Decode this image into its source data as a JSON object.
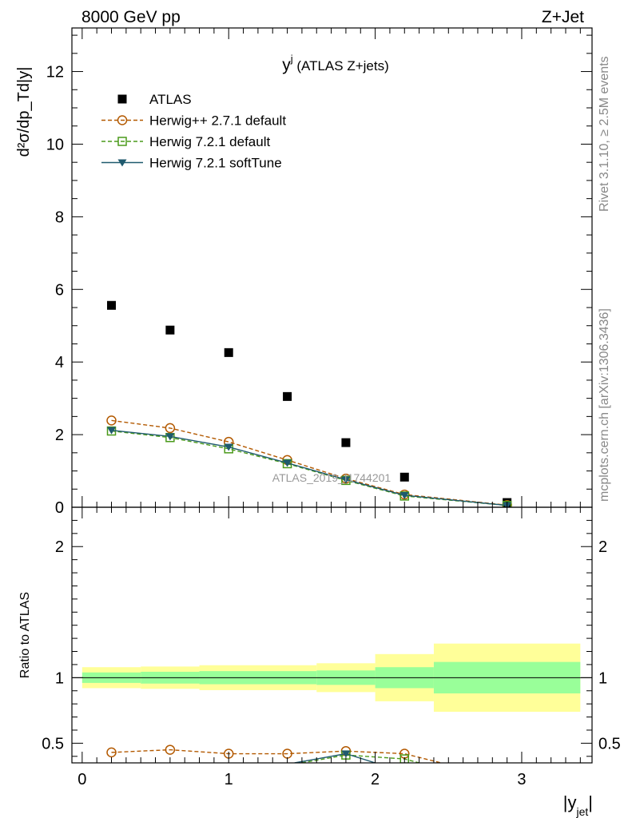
{
  "header": {
    "left": "8000 GeV pp",
    "right": "Z+Jet",
    "side_top": "Rivet 3.1.10, ≥ 2.5M events",
    "side_bottom": "mcplots.cern.ch [arXiv:1306.3436]",
    "watermark": "ATLAS_2019_I1744201"
  },
  "chart_data": [
    {
      "type": "scatter",
      "panel": "main",
      "title": "y",
      "title_superscript": "j",
      "title_suffix": " (ATLAS Z+jets)",
      "ylabel": "d²σ/dp_Td|y|",
      "ylim": [
        0,
        13.2
      ],
      "xlim": [
        -0.07,
        3.48
      ],
      "yticks": [
        0,
        2,
        4,
        6,
        8,
        10,
        12
      ],
      "xticks": [
        0,
        1,
        2,
        3
      ],
      "legend_position": "top-left",
      "series": [
        {
          "name": "ATLAS",
          "marker": "filled-square",
          "color": "#000000",
          "x": [
            0.2,
            0.6,
            1.0,
            1.4,
            1.8,
            2.2,
            2.9
          ],
          "y": [
            5.56,
            4.88,
            4.26,
            3.05,
            1.78,
            0.83,
            0.13
          ]
        },
        {
          "name": "Herwig++ 2.7.1 default",
          "marker": "open-circle",
          "line": "dashed",
          "color": "#b35900",
          "x": [
            0.2,
            0.6,
            1.0,
            1.4,
            1.8,
            2.2,
            2.9
          ],
          "y": [
            2.39,
            2.18,
            1.8,
            1.3,
            0.79,
            0.35,
            0.06
          ]
        },
        {
          "name": "Herwig 7.2.1 default",
          "marker": "open-square",
          "line": "dashed",
          "color": "#4a9a1a",
          "x": [
            0.2,
            0.6,
            1.0,
            1.4,
            1.8,
            2.2,
            2.9
          ],
          "y": [
            2.1,
            1.92,
            1.61,
            1.2,
            0.74,
            0.31,
            0.05
          ]
        },
        {
          "name": "Herwig 7.2.1 softTune",
          "marker": "filled-triangle-down",
          "line": "solid",
          "color": "#1f5a6e",
          "x": [
            0.2,
            0.6,
            1.0,
            1.4,
            1.8,
            2.2,
            2.9
          ],
          "y": [
            2.12,
            1.95,
            1.66,
            1.22,
            0.76,
            0.33,
            0.05
          ]
        }
      ]
    },
    {
      "type": "line",
      "panel": "ratio",
      "ylabel": "Ratio to ATLAS",
      "xlabel": "|y",
      "xlabel_subscript": "jet",
      "xlabel_suffix": "|",
      "ylim": [
        0.35,
        2.3
      ],
      "xlim": [
        -0.07,
        3.48
      ],
      "yticks": [
        0.5,
        1,
        2
      ],
      "xticks": [
        0,
        1,
        2,
        3
      ],
      "bands": [
        {
          "x0": 0.0,
          "x1": 0.4,
          "inner": [
            0.96,
            1.04
          ],
          "outer": [
            0.92,
            1.08
          ]
        },
        {
          "x0": 0.4,
          "x1": 0.8,
          "inner": [
            0.955,
            1.045
          ],
          "outer": [
            0.915,
            1.085
          ]
        },
        {
          "x0": 0.8,
          "x1": 1.6,
          "inner": [
            0.95,
            1.05
          ],
          "outer": [
            0.905,
            1.095
          ]
        },
        {
          "x0": 1.6,
          "x1": 2.0,
          "inner": [
            0.945,
            1.055
          ],
          "outer": [
            0.89,
            1.11
          ]
        },
        {
          "x0": 2.0,
          "x1": 2.4,
          "inner": [
            0.92,
            1.08
          ],
          "outer": [
            0.82,
            1.18
          ]
        },
        {
          "x0": 2.4,
          "x1": 3.4,
          "inner": [
            0.88,
            1.12
          ],
          "outer": [
            0.74,
            1.26
          ]
        }
      ],
      "band_colors": {
        "inner": "#99ff99",
        "outer": "#ffff99"
      },
      "series": [
        {
          "name": "Herwig++ 2.7.1 default",
          "color": "#b35900",
          "marker": "open-circle",
          "x": [
            0.2,
            0.6,
            1.0,
            1.4,
            1.8,
            2.2,
            2.45
          ],
          "y": [
            0.43,
            0.45,
            0.42,
            0.42,
            0.44,
            0.42,
            0.35
          ]
        },
        {
          "name": "Herwig 7.2.1 default",
          "color": "#4a9a1a",
          "marker": "open-square",
          "x": [
            1.5,
            1.8,
            2.2,
            2.3
          ],
          "y": [
            0.35,
            0.41,
            0.38,
            0.35
          ]
        },
        {
          "name": "Herwig 7.2.1 softTune",
          "color": "#1f5a6e",
          "marker": "filled-triangle-down",
          "x": [
            1.45,
            1.8,
            2.0
          ],
          "y": [
            0.35,
            0.42,
            0.35
          ]
        }
      ]
    }
  ]
}
